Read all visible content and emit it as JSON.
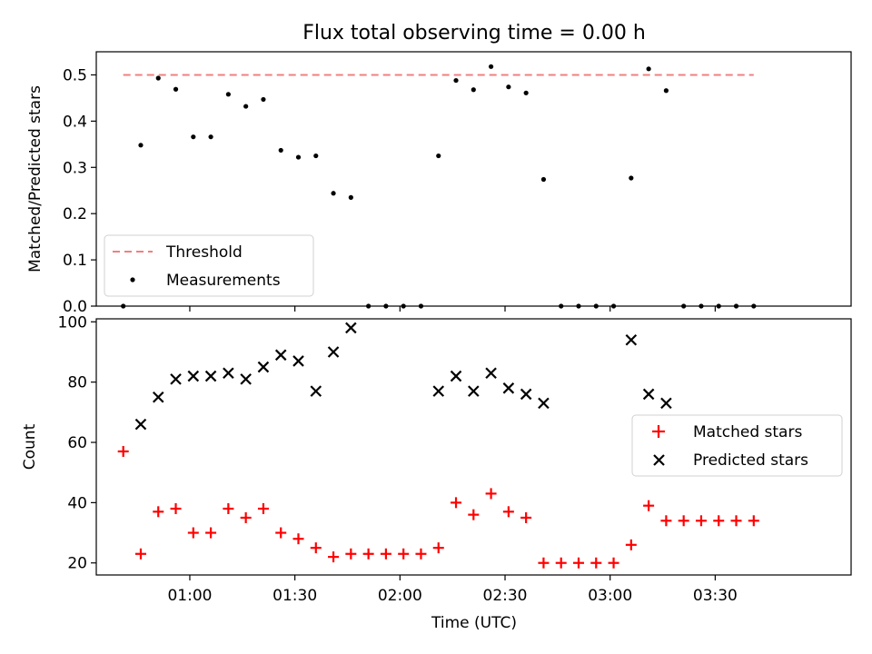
{
  "chart_data": [
    {
      "type": "scatter",
      "title": "Flux total observing time = 0.00 h",
      "xlabel": "",
      "ylabel": "Matched/Predicted stars",
      "ylim": [
        0,
        0.55
      ],
      "yticks": [
        "0.0",
        "0.1",
        "0.2",
        "0.3",
        "0.4",
        "0.5"
      ],
      "grid": false,
      "legend_position": "lower-left",
      "threshold": {
        "name": "Threshold",
        "value": 0.5,
        "x_start": "00:41",
        "x_end": "03:41",
        "color": "#f08080",
        "style": "dashed"
      },
      "series": [
        {
          "name": "Measurements",
          "marker": "dot",
          "color": "#000000",
          "x": [
            "00:41",
            "00:46",
            "00:51",
            "00:56",
            "01:01",
            "01:06",
            "01:11",
            "01:16",
            "01:21",
            "01:26",
            "01:31",
            "01:36",
            "01:41",
            "01:46",
            "01:51",
            "01:56",
            "02:01",
            "02:06",
            "02:11",
            "02:16",
            "02:21",
            "02:26",
            "02:31",
            "02:36",
            "02:41",
            "02:46",
            "02:51",
            "02:56",
            "03:01",
            "03:06",
            "03:11",
            "03:16",
            "03:21",
            "03:26",
            "03:31",
            "03:36",
            "03:41"
          ],
          "y": [
            0.0,
            0.348,
            0.493,
            0.469,
            0.366,
            0.366,
            0.458,
            0.432,
            0.447,
            0.337,
            0.322,
            0.325,
            0.244,
            0.235,
            0.0,
            0.0,
            0.0,
            0.0,
            0.325,
            0.488,
            0.468,
            0.518,
            0.474,
            0.461,
            0.274,
            0.0,
            0.0,
            0.0,
            0.0,
            0.277,
            0.513,
            0.466,
            0.0,
            0.0,
            0.0,
            0.0,
            0.0
          ]
        }
      ]
    },
    {
      "type": "scatter",
      "title": "",
      "xlabel": "Time (UTC)",
      "ylabel": "Count",
      "ylim": [
        16,
        101
      ],
      "yticks": [
        "20",
        "40",
        "60",
        "80",
        "100"
      ],
      "xticks": [
        "01:00",
        "01:30",
        "02:00",
        "02:30",
        "03:00",
        "03:30"
      ],
      "grid": false,
      "legend_position": "center-right",
      "series": [
        {
          "name": "Matched stars",
          "marker": "plus",
          "color": "#ff0000",
          "x": [
            "00:41",
            "00:46",
            "00:51",
            "00:56",
            "01:01",
            "01:06",
            "01:11",
            "01:16",
            "01:21",
            "01:26",
            "01:31",
            "01:36",
            "01:41",
            "01:46",
            "01:51",
            "01:56",
            "02:01",
            "02:06",
            "02:11",
            "02:16",
            "02:21",
            "02:26",
            "02:31",
            "02:36",
            "02:41",
            "02:46",
            "02:51",
            "02:56",
            "03:01",
            "03:06",
            "03:11",
            "03:16",
            "03:21",
            "03:26",
            "03:31",
            "03:36",
            "03:41"
          ],
          "y": [
            57,
            23,
            37,
            38,
            30,
            30,
            38,
            35,
            38,
            30,
            28,
            25,
            22,
            23,
            23,
            23,
            23,
            23,
            25,
            40,
            36,
            43,
            37,
            35,
            20,
            20,
            20,
            20,
            20,
            26,
            39,
            34,
            34,
            34,
            34,
            34,
            34
          ]
        },
        {
          "name": "Predicted stars",
          "marker": "x",
          "color": "#000000",
          "x": [
            "00:46",
            "00:51",
            "00:56",
            "01:01",
            "01:06",
            "01:11",
            "01:16",
            "01:21",
            "01:26",
            "01:31",
            "01:36",
            "01:41",
            "01:46",
            "02:11",
            "02:16",
            "02:21",
            "02:26",
            "02:31",
            "02:36",
            "02:41",
            "03:06",
            "03:11",
            "03:16"
          ],
          "y": [
            66,
            75,
            81,
            82,
            82,
            83,
            81,
            85,
            89,
            87,
            77,
            90,
            98,
            77,
            82,
            77,
            83,
            78,
            76,
            73,
            94,
            76,
            73
          ]
        }
      ]
    }
  ]
}
